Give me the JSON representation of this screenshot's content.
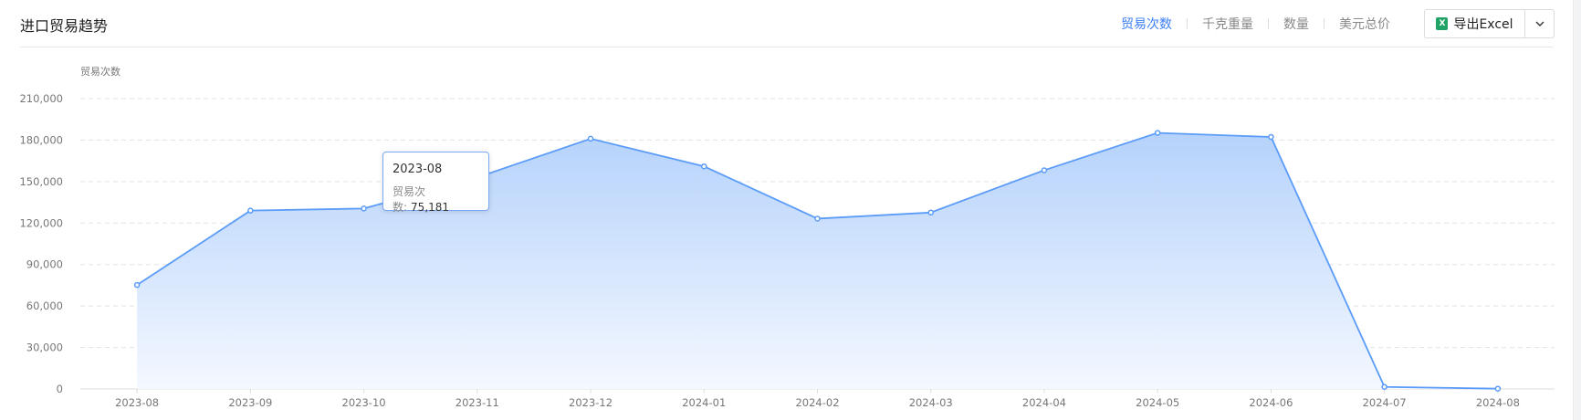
{
  "header": {
    "title": "进口贸易趋势",
    "tabs": [
      {
        "label": "贸易次数",
        "active": true
      },
      {
        "label": "千克重量"
      },
      {
        "label": "数量"
      },
      {
        "label": "美元总价"
      }
    ],
    "export_label": "导出Excel",
    "export_icon": "excel-icon",
    "dropdown_icon": "chevron-down-icon"
  },
  "tooltip": {
    "date": "2023-08",
    "label": "贸易次数:",
    "value": "75,181"
  },
  "chart_data": {
    "type": "area",
    "ylabel": "贸易次数",
    "ylim": [
      0,
      210000
    ],
    "yticks": [
      "0",
      "30,000",
      "60,000",
      "90,000",
      "120,000",
      "150,000",
      "180,000",
      "210,000"
    ],
    "grid": true,
    "color": "#5b9cf8",
    "categories": [
      "2023-08",
      "2023-09",
      "2023-10",
      "2023-11",
      "2023-12",
      "2024-01",
      "2024-02",
      "2024-03",
      "2024-04",
      "2024-05",
      "2024-06",
      "2024-07",
      "2024-08"
    ],
    "values": [
      75181,
      129000,
      130500,
      153000,
      181000,
      161000,
      123200,
      127600,
      158200,
      185200,
      182300,
      1500,
      200
    ]
  }
}
